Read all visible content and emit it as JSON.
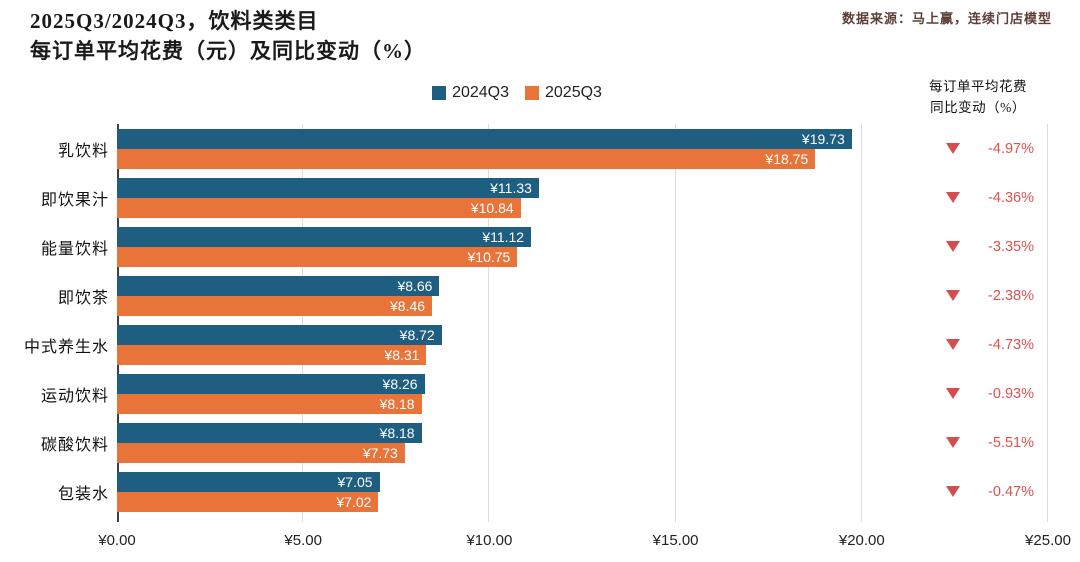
{
  "header": {
    "title_line1": "2025Q3/2024Q3，饮料类类目",
    "title_line2": "每订单平均花费（元）及同比变动（%）",
    "source": "数据来源：马上赢，连续门店模型"
  },
  "right_header": {
    "line1": "每订单平均花费",
    "line2": "同比变动（%）"
  },
  "legend": {
    "items": [
      {
        "label": "2024Q3",
        "color": "#1d5e81"
      },
      {
        "label": "2025Q3",
        "color": "#e8743a"
      }
    ]
  },
  "chart_data": {
    "type": "bar",
    "orientation": "horizontal",
    "title": "2025Q3/2024Q3，饮料类类目 每订单平均花费（元）及同比变动（%）",
    "xlabel": "每订单平均花费（元）",
    "xlim": [
      0,
      25
    ],
    "grid": true,
    "legend_position": "top",
    "x_ticks": [
      {
        "value": 0,
        "label": "¥0.00"
      },
      {
        "value": 5,
        "label": "¥5.00"
      },
      {
        "value": 10,
        "label": "¥10.00"
      },
      {
        "value": 15,
        "label": "¥15.00"
      },
      {
        "value": 20,
        "label": "¥20.00"
      },
      {
        "value": 25,
        "label": "¥25.00"
      }
    ],
    "categories": [
      "乳饮料",
      "即饮果汁",
      "能量饮料",
      "即饮茶",
      "中式养生水",
      "运动饮料",
      "碳酸饮料",
      "包装水"
    ],
    "series": [
      {
        "name": "2024Q3",
        "color": "#1d5e81",
        "values": [
          19.73,
          11.33,
          11.12,
          8.66,
          8.72,
          8.26,
          8.18,
          7.05
        ],
        "labels": [
          "¥19.73",
          "¥11.33",
          "¥11.12",
          "¥8.66",
          "¥8.72",
          "¥8.26",
          "¥8.18",
          "¥7.05"
        ]
      },
      {
        "name": "2025Q3",
        "color": "#e8743a",
        "values": [
          18.75,
          10.84,
          10.75,
          8.46,
          8.31,
          8.18,
          7.73,
          7.02
        ],
        "labels": [
          "¥18.75",
          "¥10.84",
          "¥10.75",
          "¥8.46",
          "¥8.31",
          "¥8.18",
          "¥7.73",
          "¥7.02"
        ]
      }
    ],
    "yoy_change": [
      {
        "label": "-4.97%",
        "direction": "down"
      },
      {
        "label": "-4.36%",
        "direction": "down"
      },
      {
        "label": "-3.35%",
        "direction": "down"
      },
      {
        "label": "-2.38%",
        "direction": "down"
      },
      {
        "label": "-4.73%",
        "direction": "down"
      },
      {
        "label": "-0.93%",
        "direction": "down"
      },
      {
        "label": "-5.51%",
        "direction": "down"
      },
      {
        "label": "-0.47%",
        "direction": "down"
      }
    ]
  },
  "colors": {
    "bar_2024q3": "#1d5e81",
    "bar_2025q3": "#e8743a",
    "negative_text": "#e05151",
    "triangle": "#d34f4f",
    "gridline": "#dcdcdc",
    "axis_line": "#404040",
    "source_text": "#5d4037"
  }
}
